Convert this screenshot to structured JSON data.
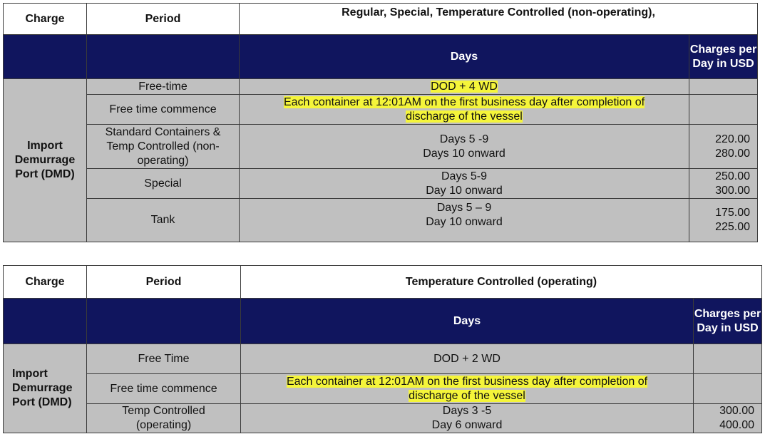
{
  "colors": {
    "header_blue": "#10155e",
    "body_gray": "#c0c0c0",
    "highlight": "#f5f53a"
  },
  "table1": {
    "headers": {
      "charge": "Charge",
      "period": "Period",
      "category": "Regular, Special, Temperature Controlled (non-operating),",
      "days": "Days",
      "charges": "Charges per Day in USD"
    },
    "charge_label": "Import Demurrage Port (DMD)",
    "rows": [
      {
        "period": "Free-time",
        "days": [
          "DOD + 4 WD"
        ],
        "charges": []
      },
      {
        "period": "Free time commence",
        "days": [
          "Each container at 12:01AM on the first business day after completion of discharge of the vessel"
        ],
        "charges": []
      },
      {
        "period": "Standard Containers  & Temp Controlled (non-operating)",
        "days": [
          "Days 5 -9",
          "Days 10 onward"
        ],
        "charges": [
          "220.00",
          "280.00"
        ]
      },
      {
        "period": "Special",
        "days": [
          "Days 5-9",
          "Day 10 onward"
        ],
        "charges": [
          "250.00",
          "300.00"
        ]
      },
      {
        "period": "Tank",
        "days": [
          "Days 5 – 9",
          "Day 10 onward"
        ],
        "charges": [
          "175.00",
          "225.00"
        ]
      }
    ]
  },
  "table2": {
    "headers": {
      "charge": "Charge",
      "period": "Period",
      "category": "Temperature Controlled (operating)",
      "days": "Days",
      "charges": "Charges per Day in USD"
    },
    "charge_label": "Import Demurrage Port (DMD)",
    "rows": [
      {
        "period": "Free Time",
        "days": [
          "DOD + 2 WD"
        ],
        "charges": []
      },
      {
        "period": "Free time commence",
        "days": [
          "Each container at 12:01AM on the first business day after completion of discharge of the vessel"
        ],
        "charges": []
      },
      {
        "period": "Temp Controlled (operating)",
        "days": [
          "Days 3 -5",
          "Day 6 onward"
        ],
        "charges": [
          "300.00",
          "400.00"
        ]
      }
    ]
  }
}
